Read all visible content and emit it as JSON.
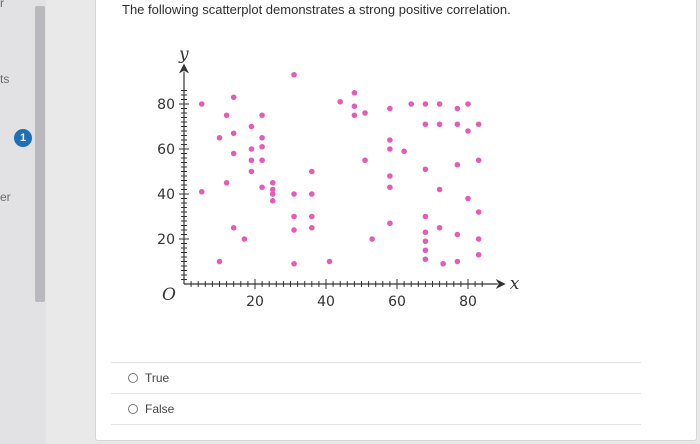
{
  "sidebar": {
    "fragments": [
      "r",
      "ts",
      "er"
    ],
    "badge": "1"
  },
  "question": {
    "prompt": "The following scatterplot demonstrates a strong positive correlation.",
    "options": [
      {
        "label": "True"
      },
      {
        "label": "False"
      }
    ]
  },
  "chart_data": {
    "type": "scatter",
    "title": "",
    "xlabel": "x",
    "ylabel": "y",
    "origin_label": "O",
    "xlim": [
      0,
      85
    ],
    "ylim": [
      0,
      90
    ],
    "xticks": [
      20,
      40,
      60,
      80
    ],
    "yticks": [
      20,
      40,
      60,
      80
    ],
    "color": "#e45bb8",
    "points": [
      [
        5,
        80
      ],
      [
        5,
        41
      ],
      [
        10,
        65
      ],
      [
        10,
        10
      ],
      [
        12,
        75
      ],
      [
        12,
        45
      ],
      [
        14,
        83
      ],
      [
        14,
        58
      ],
      [
        14,
        67
      ],
      [
        14,
        25
      ],
      [
        17,
        20
      ],
      [
        19,
        70
      ],
      [
        19,
        60
      ],
      [
        19,
        55
      ],
      [
        19,
        50
      ],
      [
        22,
        75
      ],
      [
        22,
        65
      ],
      [
        22,
        61
      ],
      [
        22,
        55
      ],
      [
        22,
        43
      ],
      [
        25,
        45
      ],
      [
        25,
        42
      ],
      [
        25,
        40
      ],
      [
        25,
        37
      ],
      [
        31,
        93
      ],
      [
        31,
        40
      ],
      [
        31,
        30
      ],
      [
        31,
        24
      ],
      [
        31,
        9
      ],
      [
        36,
        50
      ],
      [
        36,
        40
      ],
      [
        36,
        30
      ],
      [
        36,
        25
      ],
      [
        41,
        10
      ],
      [
        44,
        81
      ],
      [
        48,
        75
      ],
      [
        48,
        79
      ],
      [
        48,
        85
      ],
      [
        51,
        76
      ],
      [
        51,
        55
      ],
      [
        53,
        20
      ],
      [
        58,
        78
      ],
      [
        58,
        64
      ],
      [
        58,
        60
      ],
      [
        58,
        48
      ],
      [
        58,
        43
      ],
      [
        58,
        27
      ],
      [
        62,
        59
      ],
      [
        64,
        80
      ],
      [
        68,
        80
      ],
      [
        68,
        71
      ],
      [
        68,
        51
      ],
      [
        68,
        30
      ],
      [
        68,
        23
      ],
      [
        68,
        19
      ],
      [
        68,
        15
      ],
      [
        68,
        11
      ],
      [
        72,
        80
      ],
      [
        72,
        71
      ],
      [
        72,
        42
      ],
      [
        72,
        25
      ],
      [
        73,
        9
      ],
      [
        77,
        78
      ],
      [
        77,
        71
      ],
      [
        77,
        53
      ],
      [
        77,
        22
      ],
      [
        77,
        10
      ],
      [
        80,
        80
      ],
      [
        80,
        68
      ],
      [
        80,
        38
      ],
      [
        83,
        71
      ],
      [
        83,
        55
      ],
      [
        83,
        32
      ],
      [
        83,
        20
      ],
      [
        83,
        13
      ]
    ]
  }
}
